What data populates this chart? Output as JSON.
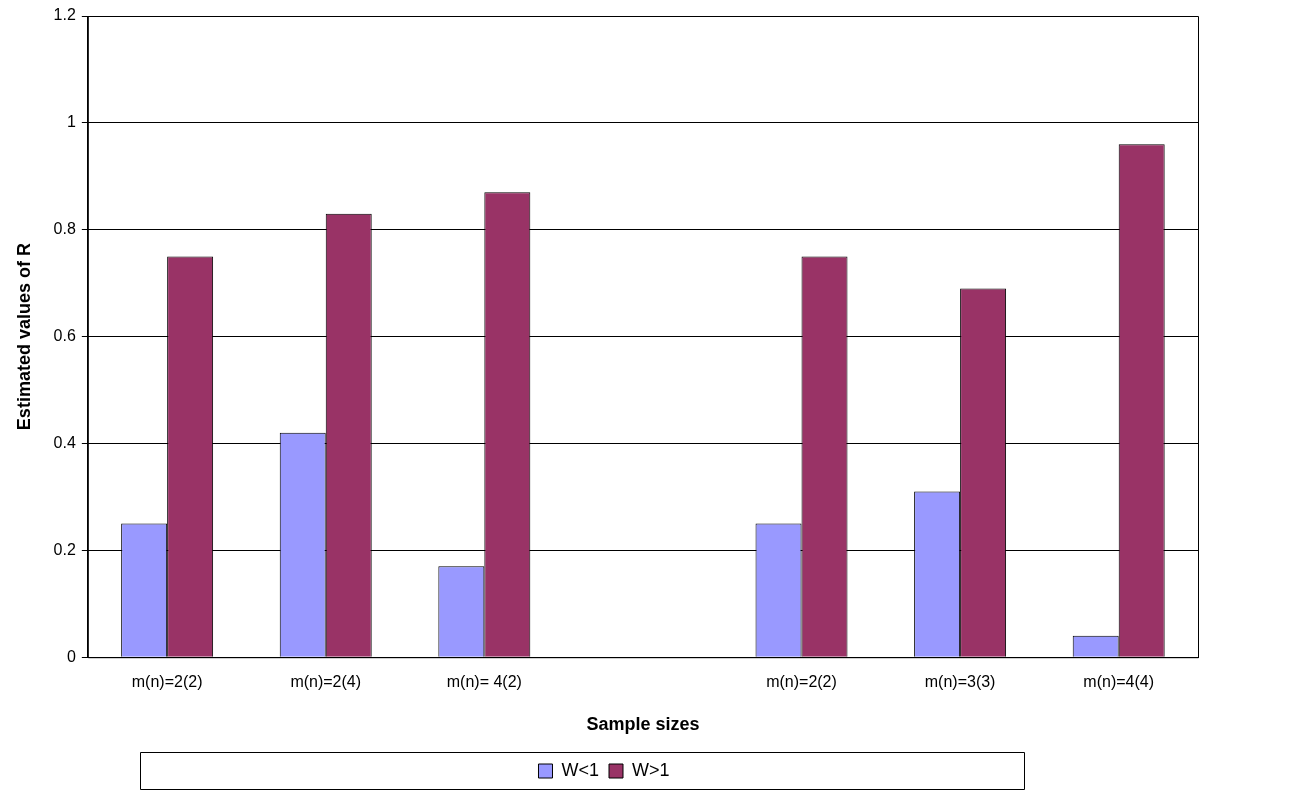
{
  "chart_data": {
    "type": "bar",
    "xlabel": "Sample sizes",
    "ylabel": "Estimated values of R",
    "categories": [
      "m(n)=2(2)",
      "m(n)=2(4)",
      "m(n)= 4(2)",
      null,
      "m(n)=2(2)",
      "m(n)=3(3)",
      "m(n)=4(4)"
    ],
    "series": [
      {
        "name": "W<1",
        "color": "#9999ff",
        "values": [
          0.25,
          0.42,
          0.17,
          null,
          0.25,
          0.31,
          0.04
        ]
      },
      {
        "name": "W>1",
        "color": "#993366",
        "values": [
          0.75,
          0.83,
          0.87,
          null,
          0.75,
          0.69,
          0.96
        ]
      }
    ],
    "ylim": [
      0,
      1.2
    ],
    "yticks": [
      0,
      0.2,
      0.4,
      0.6,
      0.8,
      1,
      1.2
    ],
    "grid": "y",
    "legend": "bottom"
  }
}
